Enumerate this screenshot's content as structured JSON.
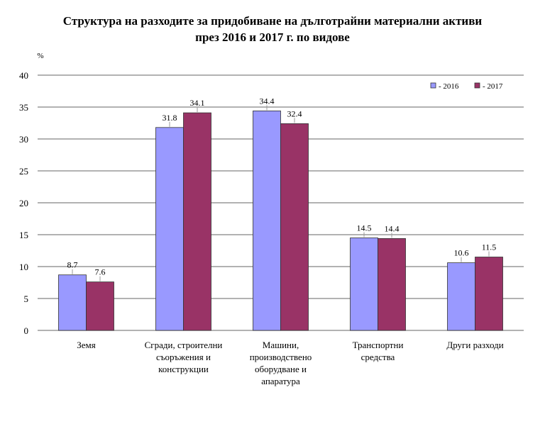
{
  "chart_data": {
    "type": "bar",
    "title_line1": "Структура на разходите за придобиване на дълготрайни материални активи",
    "title_line2": "през 2016 и 2017 г. по видове",
    "ylabel": "%",
    "ylim": [
      0,
      40
    ],
    "yticks": [
      0,
      5,
      10,
      15,
      20,
      25,
      30,
      35,
      40
    ],
    "grid": true,
    "legend_position": "top-right",
    "categories": [
      [
        "Земя"
      ],
      [
        "Сгради,  строителни",
        "съоръжения и",
        "конструкции"
      ],
      [
        "Машини,",
        "производствено",
        "оборудване и",
        "апаратура"
      ],
      [
        "Транспортни",
        "средства"
      ],
      [
        "Други разходи"
      ]
    ],
    "series": [
      {
        "name": "- 2016",
        "color": "#9999FF",
        "values": [
          8.7,
          31.8,
          34.4,
          14.5,
          10.6
        ]
      },
      {
        "name": "- 2017",
        "color": "#993366",
        "values": [
          7.6,
          34.1,
          32.4,
          14.4,
          11.5
        ]
      }
    ]
  }
}
